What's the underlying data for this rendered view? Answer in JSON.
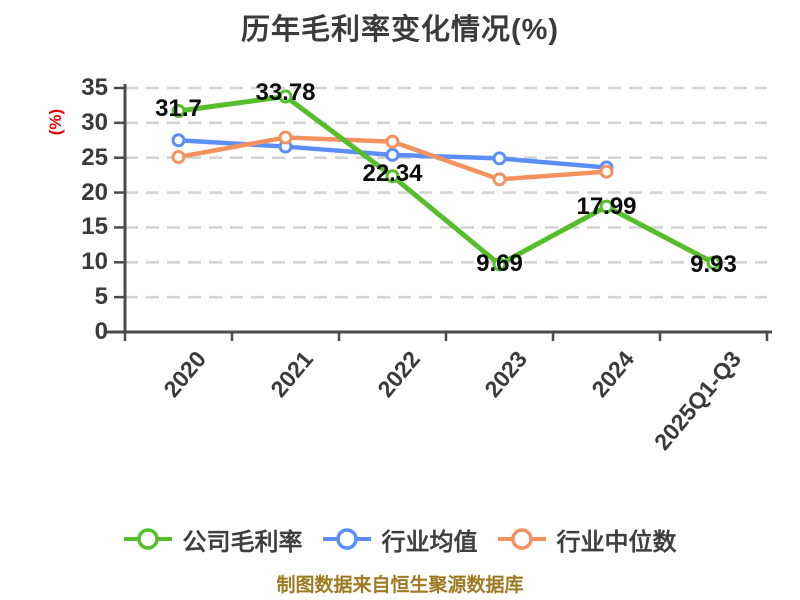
{
  "title": "历年毛利率变化情况(%)",
  "footer": "制图数据来自恒生聚源数据库",
  "colors": {
    "company": "#56be2b",
    "industry_avg": "#5b8ff7",
    "industry_median": "#f4925f",
    "ylabel_red": "#ee0000",
    "axis": "#4b4b4b",
    "grid": "#d4d4d4",
    "text": "#3a3a3a",
    "footer_gold": "#9e7a22"
  },
  "chart_data": {
    "type": "line",
    "title": "历年毛利率变化情况(%)",
    "ylabel": "(%)",
    "xlabel": "",
    "categories": [
      "2020",
      "2021",
      "2022",
      "2023",
      "2024",
      "2025Q1-Q3"
    ],
    "series": [
      {
        "name": "公司毛利率",
        "color": "#56be2b",
        "values": [
          31.7,
          33.78,
          22.34,
          9.69,
          17.99,
          9.93
        ],
        "labels": [
          "31.7",
          "33.78",
          "22.34",
          "9.69",
          "17.99",
          "9.93"
        ]
      },
      {
        "name": "行业均值",
        "color": "#5b8ff7",
        "values": [
          27.5,
          26.6,
          25.4,
          24.9,
          23.6,
          null
        ]
      },
      {
        "name": "行业中位数",
        "color": "#f4925f",
        "values": [
          25.1,
          27.9,
          27.3,
          21.9,
          23.0,
          null
        ]
      }
    ],
    "ylim": [
      0,
      35
    ],
    "yticks": [
      0,
      5,
      10,
      15,
      20,
      25,
      30,
      35
    ],
    "grid": "horizontal-dashed",
    "legend_position": "bottom",
    "marker": "circle-white-fill"
  }
}
